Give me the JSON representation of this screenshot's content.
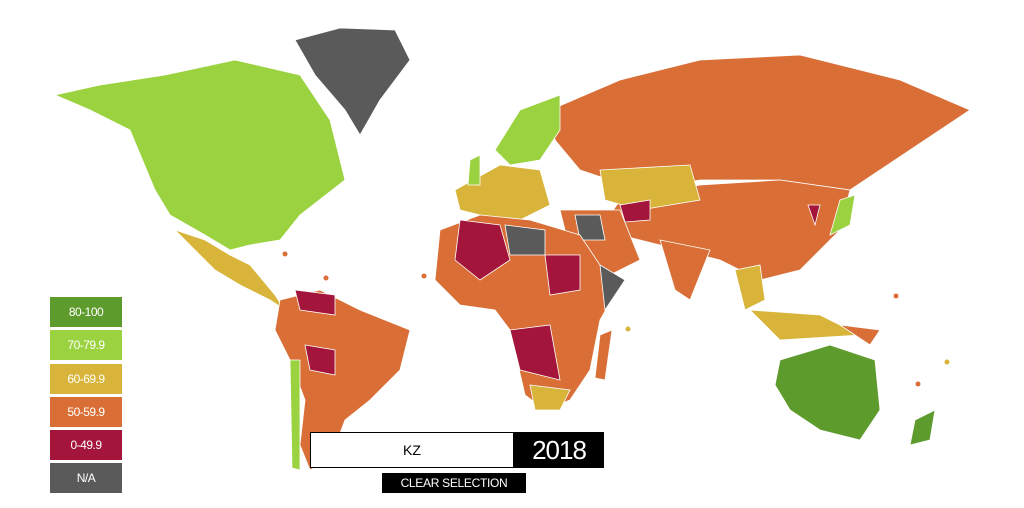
{
  "legend": {
    "items": [
      {
        "label": "80-100",
        "color": "#5e9b2d"
      },
      {
        "label": "70-79.9",
        "color": "#9bd23f"
      },
      {
        "label": "60-69.9",
        "color": "#d8b43a"
      },
      {
        "label": "50-59.9",
        "color": "#d96f36"
      },
      {
        "label": "0-49.9",
        "color": "#a3153a"
      },
      {
        "label": "N/A",
        "color": "#5a5a5a"
      }
    ]
  },
  "search": {
    "value": "KZ"
  },
  "year": "2018",
  "button": {
    "label": "CLEAR SELECTION"
  }
}
